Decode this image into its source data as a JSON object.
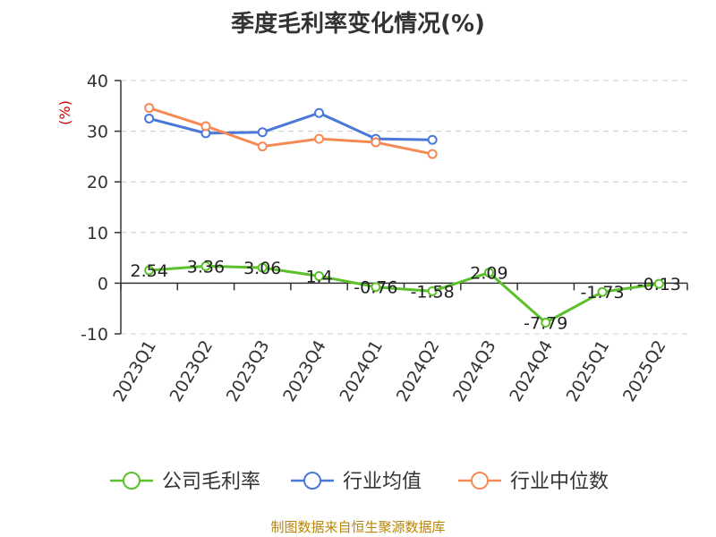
{
  "source_text": "制图数据来自恒生聚源数据库",
  "colors": {
    "company": "#5bc02a",
    "industry_avg": "#4a78d8",
    "industry_median": "#f58a55",
    "unit": "#cc0000",
    "source": "#b8860b",
    "grid": "#cccccc"
  },
  "chart_data": {
    "type": "line",
    "title": "季度毛利率变化情况(%)",
    "ylabel": "(%)",
    "categories": [
      "2023Q1",
      "2023Q2",
      "2023Q3",
      "2023Q4",
      "2024Q1",
      "2024Q2",
      "2024Q3",
      "2024Q4",
      "2025Q1",
      "2025Q2"
    ],
    "yticks": [
      "-10",
      "0",
      "10",
      "20",
      "30",
      "40"
    ],
    "ylim": [
      -10,
      40
    ],
    "grid": true,
    "legend_position": "bottom",
    "series": [
      {
        "name": "公司毛利率",
        "values": [
          2.54,
          3.36,
          3.06,
          1.4,
          -0.76,
          -1.58,
          2.09,
          -7.79,
          -1.73,
          -0.13
        ],
        "labels": [
          "2.54",
          "3.36",
          "3.06",
          "1.4",
          "-0.76",
          "-1.58",
          "2.09",
          "-7.79",
          "-1.73",
          "-0.13"
        ]
      },
      {
        "name": "行业均值",
        "values": [
          32.5,
          29.6,
          29.8,
          33.6,
          28.5,
          28.3,
          null,
          null,
          null,
          null
        ]
      },
      {
        "name": "行业中位数",
        "values": [
          34.6,
          31.0,
          27.0,
          28.5,
          27.8,
          25.5,
          null,
          null,
          null,
          null
        ]
      }
    ]
  }
}
